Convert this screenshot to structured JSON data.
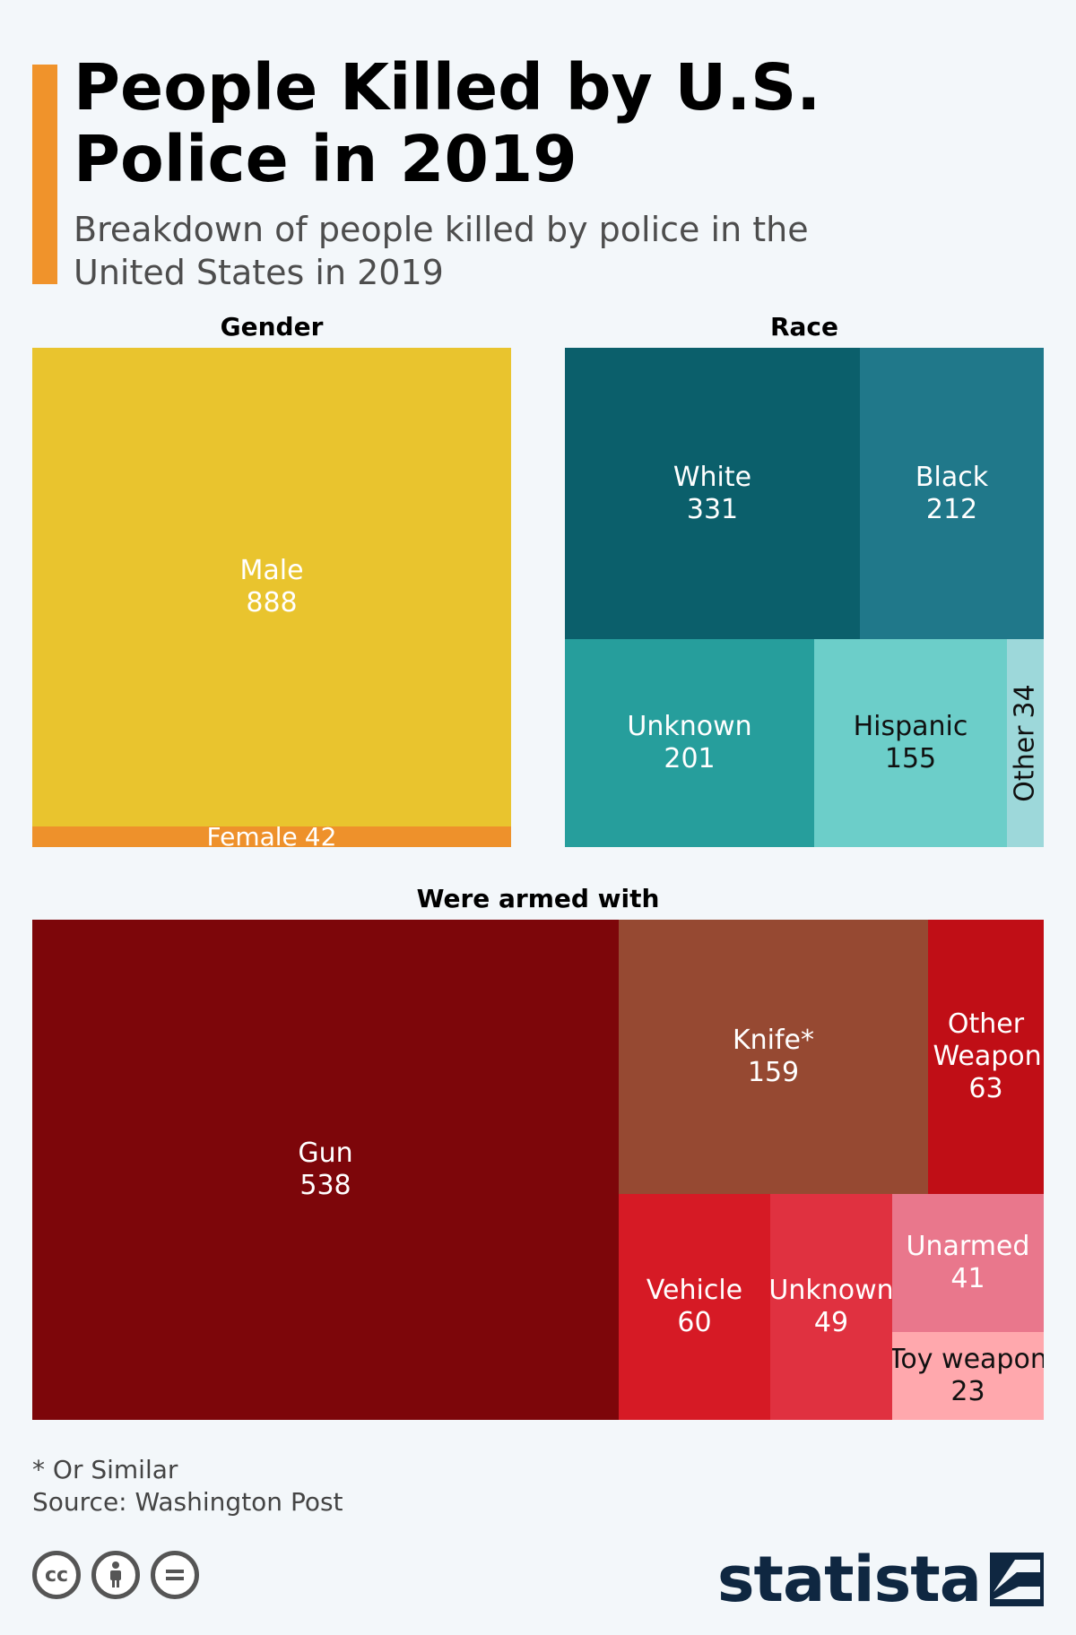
{
  "header": {
    "title": "People Killed by U.S. Police in 2019",
    "subtitle": "Breakdown of people killed by police in the United States in 2019"
  },
  "chart_data": [
    {
      "type": "treemap",
      "title": "Gender",
      "items": [
        {
          "label": "Male",
          "value": 888,
          "color": "#e9c42e"
        },
        {
          "label": "Female",
          "value": 42,
          "color": "#ee912b"
        }
      ]
    },
    {
      "type": "treemap",
      "title": "Race",
      "items": [
        {
          "label": "White",
          "value": 331,
          "color": "#0b5f6b"
        },
        {
          "label": "Black",
          "value": 212,
          "color": "#20788a"
        },
        {
          "label": "Unknown",
          "value": 201,
          "color": "#269e9c"
        },
        {
          "label": "Hispanic",
          "value": 155,
          "color": "#6ccec9"
        },
        {
          "label": "Other",
          "value": 34,
          "color": "#9dd8da"
        }
      ]
    },
    {
      "type": "treemap",
      "title": "Were armed with",
      "items": [
        {
          "label": "Gun",
          "value": 538,
          "color": "#7d060a"
        },
        {
          "label": "Knife*",
          "value": 159,
          "color": "#964932"
        },
        {
          "label": "Other Weapon",
          "value": 63,
          "color": "#c00e16"
        },
        {
          "label": "Vehicle",
          "value": 60,
          "color": "#d61a25"
        },
        {
          "label": "Unknown",
          "value": 49,
          "color": "#e03140"
        },
        {
          "label": "Unarmed",
          "value": 41,
          "color": "#e9778c"
        },
        {
          "label": "Toy weapon",
          "value": 23,
          "color": "#ffa8ad"
        }
      ]
    }
  ],
  "footer": {
    "footnote": "* Or Similar",
    "source": "Source: Washington Post",
    "brand": "statista",
    "license_icons": [
      "cc-icon",
      "by-person-icon",
      "nd-equals-icon"
    ]
  }
}
